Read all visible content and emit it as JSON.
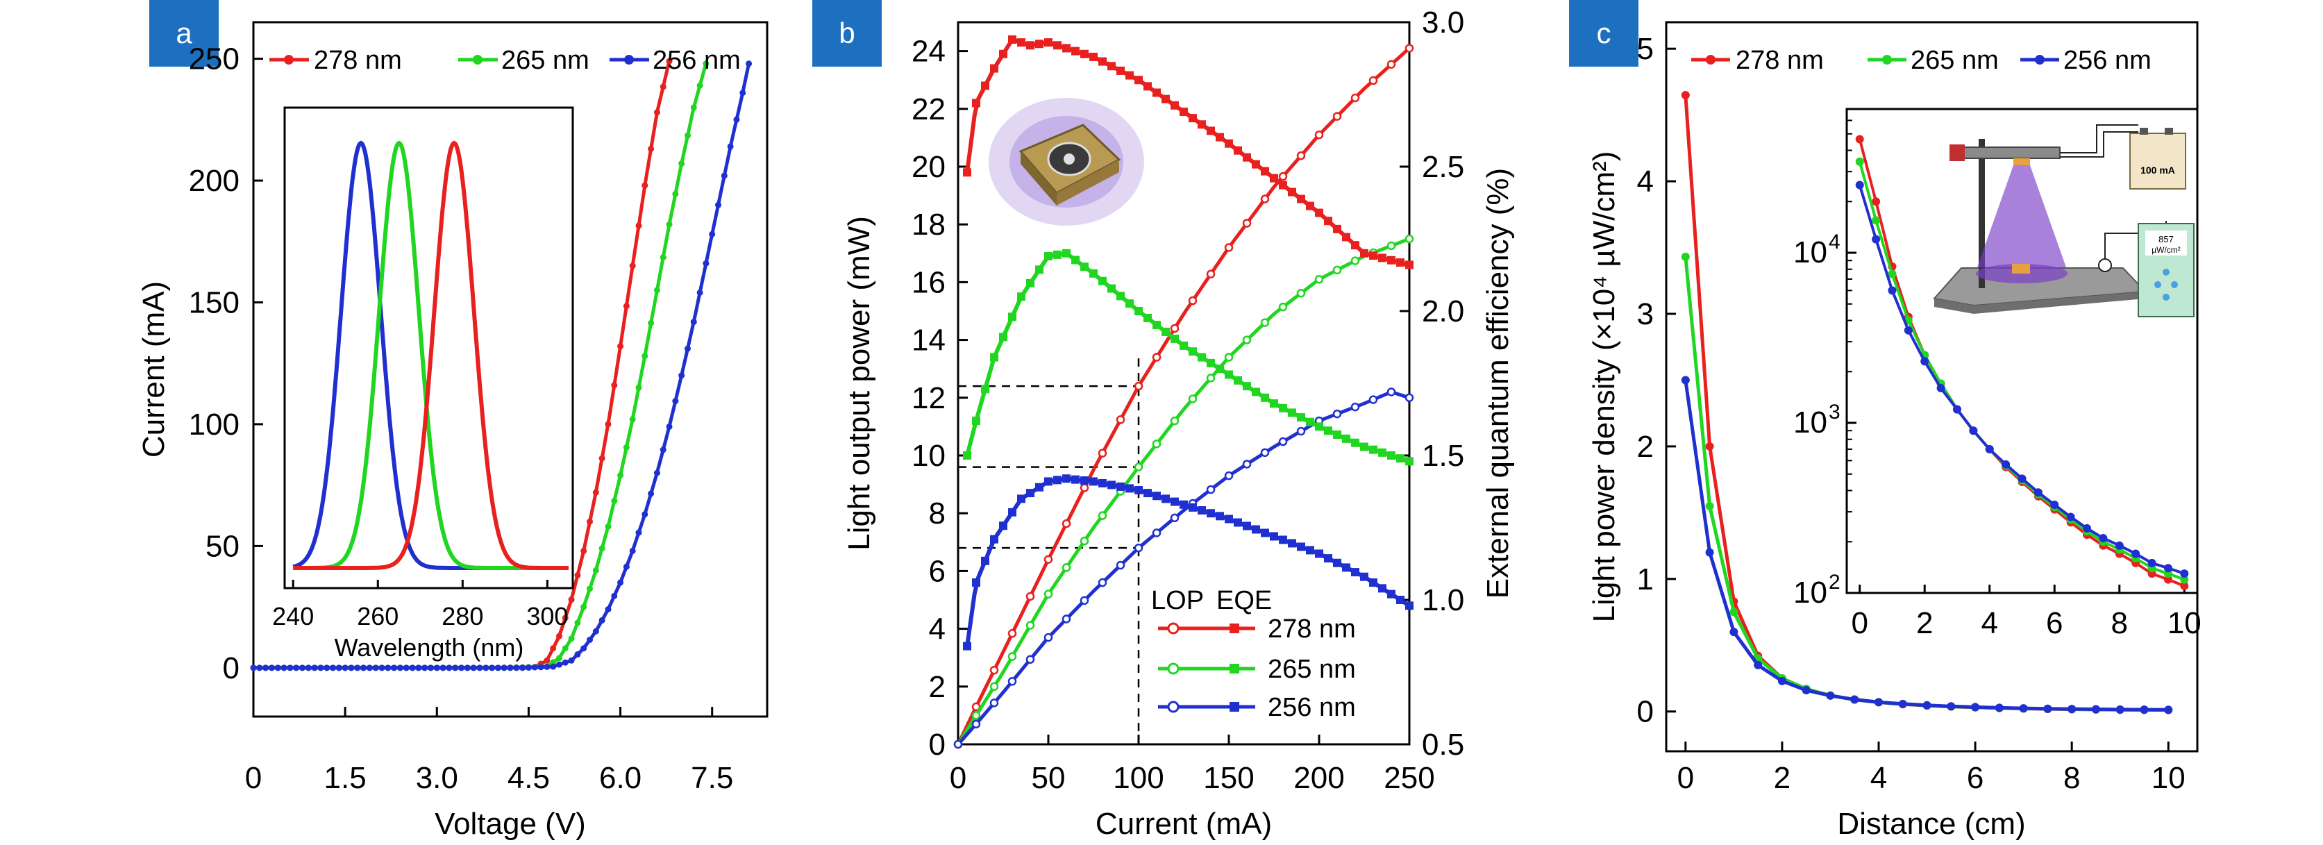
{
  "colors": {
    "red": "#e8201e",
    "green": "#20d620",
    "blue": "#2030d0",
    "panel_label_bg": "#1d6fc0"
  },
  "panels": {
    "a": "a",
    "b": "b",
    "c": "c"
  },
  "legend": {
    "s278": "278 nm",
    "s265": "265 nm",
    "s256": "256 nm",
    "lop": "LOP",
    "eqe": "EQE"
  },
  "icons": [
    "uv-led-package-icon",
    "measurement-setup-schematic-icon"
  ],
  "setup": {
    "source_readout": "100 mA",
    "meter_value": "857",
    "meter_unit": "µW/cm²"
  },
  "chart_data": [
    {
      "id": "a-main",
      "type": "line",
      "xlabel": "Voltage (V)",
      "ylabel": "Current (mA)",
      "xlim": [
        0,
        8.4
      ],
      "ylim": [
        -20,
        265
      ],
      "xticks": [
        "0",
        "1.5",
        "3.0",
        "4.5",
        "6.0",
        "7.5"
      ],
      "yticks": [
        "0",
        "50",
        "100",
        "150",
        "200",
        "250"
      ],
      "series": [
        {
          "name": "278 nm",
          "color": "#e8201e",
          "points": [
            [
              0,
              0
            ],
            [
              4.0,
              0
            ],
            [
              4.6,
              0.3
            ],
            [
              4.8,
              3
            ],
            [
              5.0,
              13
            ],
            [
              5.2,
              28
            ],
            [
              5.4,
              48
            ],
            [
              5.6,
              72
            ],
            [
              5.8,
              100
            ],
            [
              6.0,
              132
            ],
            [
              6.2,
              165
            ],
            [
              6.4,
              198
            ],
            [
              6.6,
              228
            ],
            [
              6.8,
              249
            ]
          ]
        },
        {
          "name": "265 nm",
          "color": "#20d620",
          "points": [
            [
              0,
              0
            ],
            [
              4.2,
              0
            ],
            [
              4.8,
              0.5
            ],
            [
              5.0,
              4
            ],
            [
              5.2,
              12
            ],
            [
              5.4,
              25
            ],
            [
              5.6,
              40
            ],
            [
              5.8,
              58
            ],
            [
              6.0,
              79
            ],
            [
              6.2,
              102
            ],
            [
              6.4,
              128
            ],
            [
              6.6,
              155
            ],
            [
              6.8,
              182
            ],
            [
              7.0,
              207
            ],
            [
              7.2,
              230
            ],
            [
              7.4,
              248
            ]
          ]
        },
        {
          "name": "256 nm",
          "color": "#2030d0",
          "points": [
            [
              0,
              0
            ],
            [
              4.4,
              0
            ],
            [
              4.9,
              0.5
            ],
            [
              5.2,
              3
            ],
            [
              5.4,
              8
            ],
            [
              5.6,
              15
            ],
            [
              5.8,
              24
            ],
            [
              6.0,
              35
            ],
            [
              6.2,
              48
            ],
            [
              6.4,
              63
            ],
            [
              6.6,
              80
            ],
            [
              6.8,
              99
            ],
            [
              7.0,
              120
            ],
            [
              7.2,
              142
            ],
            [
              7.4,
              166
            ],
            [
              7.6,
              190
            ],
            [
              7.8,
              214
            ],
            [
              8.0,
              236
            ],
            [
              8.1,
              248
            ]
          ]
        }
      ]
    },
    {
      "id": "a-inset",
      "type": "line",
      "xlabel": "Wavelength (nm)",
      "xlim": [
        238,
        306
      ],
      "xticks": [
        "240",
        "260",
        "280",
        "300"
      ],
      "series": [
        {
          "name": "256 nm",
          "color": "#2030d0",
          "peak": 256,
          "fwhm": 11
        },
        {
          "name": "265 nm",
          "color": "#20d620",
          "peak": 265,
          "fwhm": 11
        },
        {
          "name": "278 nm",
          "color": "#e8201e",
          "peak": 278,
          "fwhm": 11
        }
      ]
    },
    {
      "id": "b-main",
      "type": "line",
      "xlabel": "Current (mA)",
      "ylabel": "Light output power (mW)",
      "y2label": "External quantum efficiency (%)",
      "xlim": [
        0,
        250
      ],
      "ylim": [
        0,
        25
      ],
      "y2lim": [
        0.5,
        3.0
      ],
      "xticks": [
        "0",
        "50",
        "100",
        "150",
        "200",
        "250"
      ],
      "yticks": [
        "0",
        "2",
        "4",
        "6",
        "8",
        "10",
        "12",
        "14",
        "16",
        "18",
        "20",
        "22",
        "24"
      ],
      "y2ticks": [
        "0.5",
        "1.0",
        "1.5",
        "2.0",
        "2.5",
        "3.0"
      ],
      "reference_lines": {
        "x": 100,
        "lop_values": [
          12.4,
          9.6,
          6.8
        ]
      },
      "lop": [
        {
          "name": "278 nm",
          "color": "#e8201e",
          "points": [
            [
              0,
              0
            ],
            [
              10,
              1.3
            ],
            [
              25,
              3.2
            ],
            [
              50,
              6.4
            ],
            [
              75,
              9.5
            ],
            [
              100,
              12.4
            ],
            [
              125,
              14.9
            ],
            [
              150,
              17.2
            ],
            [
              175,
              19.3
            ],
            [
              200,
              21.1
            ],
            [
              225,
              22.7
            ],
            [
              250,
              24.1
            ]
          ]
        },
        {
          "name": "265 nm",
          "color": "#20d620",
          "points": [
            [
              0,
              0
            ],
            [
              10,
              1.0
            ],
            [
              25,
              2.5
            ],
            [
              50,
              5.2
            ],
            [
              75,
              7.5
            ],
            [
              100,
              9.6
            ],
            [
              125,
              11.6
            ],
            [
              150,
              13.4
            ],
            [
              175,
              14.9
            ],
            [
              200,
              16.1
            ],
            [
              225,
              16.9
            ],
            [
              250,
              17.5
            ]
          ]
        },
        {
          "name": "256 nm",
          "color": "#2030d0",
          "points": [
            [
              0,
              0
            ],
            [
              10,
              0.7
            ],
            [
              25,
              1.8
            ],
            [
              50,
              3.7
            ],
            [
              75,
              5.3
            ],
            [
              100,
              6.8
            ],
            [
              125,
              8.1
            ],
            [
              150,
              9.3
            ],
            [
              175,
              10.3
            ],
            [
              200,
              11.2
            ],
            [
              225,
              11.8
            ],
            [
              240,
              12.2
            ],
            [
              250,
              12.0
            ]
          ]
        }
      ],
      "eqe": [
        {
          "name": "278 nm",
          "color": "#e8201e",
          "points": [
            [
              5,
              2.48
            ],
            [
              10,
              2.72
            ],
            [
              20,
              2.84
            ],
            [
              30,
              2.94
            ],
            [
              40,
              2.92
            ],
            [
              50,
              2.93
            ],
            [
              75,
              2.88
            ],
            [
              100,
              2.8
            ],
            [
              125,
              2.69
            ],
            [
              150,
              2.58
            ],
            [
              175,
              2.46
            ],
            [
              200,
              2.34
            ],
            [
              225,
              2.2
            ],
            [
              250,
              2.16
            ]
          ]
        },
        {
          "name": "265 nm",
          "color": "#20d620",
          "points": [
            [
              5,
              1.5
            ],
            [
              10,
              1.62
            ],
            [
              20,
              1.84
            ],
            [
              35,
              2.05
            ],
            [
              50,
              2.19
            ],
            [
              60,
              2.2
            ],
            [
              75,
              2.13
            ],
            [
              100,
              2.0
            ],
            [
              125,
              1.88
            ],
            [
              150,
              1.78
            ],
            [
              175,
              1.68
            ],
            [
              200,
              1.6
            ],
            [
              225,
              1.53
            ],
            [
              250,
              1.48
            ]
          ]
        },
        {
          "name": "256 nm",
          "color": "#2030d0",
          "points": [
            [
              5,
              0.84
            ],
            [
              10,
              1.06
            ],
            [
              20,
              1.21
            ],
            [
              35,
              1.35
            ],
            [
              50,
              1.41
            ],
            [
              60,
              1.42
            ],
            [
              75,
              1.41
            ],
            [
              100,
              1.38
            ],
            [
              125,
              1.33
            ],
            [
              150,
              1.28
            ],
            [
              175,
              1.22
            ],
            [
              200,
              1.16
            ],
            [
              225,
              1.08
            ],
            [
              250,
              0.98
            ]
          ]
        }
      ]
    },
    {
      "id": "c-main",
      "type": "line",
      "xlabel": "Distance (cm)",
      "ylabel": "Light power density (×10⁴ µW/cm²)",
      "xlim": [
        -0.4,
        10.6
      ],
      "ylim": [
        -0.3,
        5.2
      ],
      "xticks": [
        "0",
        "2",
        "4",
        "6",
        "8",
        "10"
      ],
      "yticks": [
        "0",
        "1",
        "2",
        "3",
        "4",
        "5"
      ],
      "x": [
        0,
        0.5,
        1,
        1.5,
        2,
        2.5,
        3,
        3.5,
        4,
        4.5,
        5,
        5.5,
        6,
        6.5,
        7,
        7.5,
        8,
        8.5,
        9,
        9.5,
        10
      ],
      "series": [
        {
          "name": "278 nm",
          "color": "#e8201e",
          "values": [
            4.65,
            2.0,
            0.83,
            0.42,
            0.25,
            0.17,
            0.12,
            0.09,
            0.07,
            0.055,
            0.045,
            0.037,
            0.031,
            0.026,
            0.022,
            0.019,
            0.017,
            0.015,
            0.013,
            0.012,
            0.011
          ]
        },
        {
          "name": "265 nm",
          "color": "#20d620",
          "values": [
            3.43,
            1.55,
            0.75,
            0.4,
            0.25,
            0.17,
            0.12,
            0.09,
            0.07,
            0.056,
            0.046,
            0.038,
            0.032,
            0.027,
            0.023,
            0.02,
            0.018,
            0.016,
            0.014,
            0.013,
            0.012
          ]
        },
        {
          "name": "256 nm",
          "color": "#2030d0",
          "values": [
            2.5,
            1.2,
            0.6,
            0.35,
            0.23,
            0.16,
            0.12,
            0.09,
            0.07,
            0.057,
            0.047,
            0.039,
            0.033,
            0.028,
            0.024,
            0.021,
            0.019,
            0.017,
            0.015,
            0.014,
            0.013
          ]
        }
      ]
    },
    {
      "id": "c-inset",
      "type": "line",
      "scale": "log",
      "xlim": [
        -0.4,
        10.4
      ],
      "ylim": [
        100,
        70000
      ],
      "xticks": [
        "0",
        "2",
        "4",
        "6",
        "8",
        "10"
      ],
      "yticks": [
        {
          "base": "10",
          "exp": "2"
        },
        {
          "base": "10",
          "exp": "3"
        },
        {
          "base": "10",
          "exp": "4"
        }
      ],
      "x": [
        0,
        0.5,
        1,
        1.5,
        2,
        2.5,
        3,
        3.5,
        4,
        4.5,
        5,
        5.5,
        6,
        6.5,
        7,
        7.5,
        8,
        8.5,
        9,
        9.5,
        10
      ],
      "series": [
        {
          "name": "278 nm",
          "color": "#e8201e",
          "values": [
            46500,
            20000,
            8300,
            4200,
            2500,
            1700,
            1200,
            900,
            700,
            550,
            450,
            370,
            310,
            260,
            220,
            190,
            170,
            150,
            130,
            120,
            110
          ]
        },
        {
          "name": "265 nm",
          "color": "#20d620",
          "values": [
            34300,
            15500,
            7500,
            4000,
            2500,
            1700,
            1200,
            900,
            700,
            560,
            460,
            380,
            320,
            270,
            230,
            200,
            180,
            160,
            140,
            130,
            120
          ]
        },
        {
          "name": "256 nm",
          "color": "#2030d0",
          "values": [
            25000,
            12000,
            6000,
            3500,
            2300,
            1600,
            1200,
            900,
            700,
            570,
            470,
            390,
            330,
            280,
            240,
            210,
            190,
            170,
            150,
            140,
            130
          ]
        }
      ]
    }
  ]
}
